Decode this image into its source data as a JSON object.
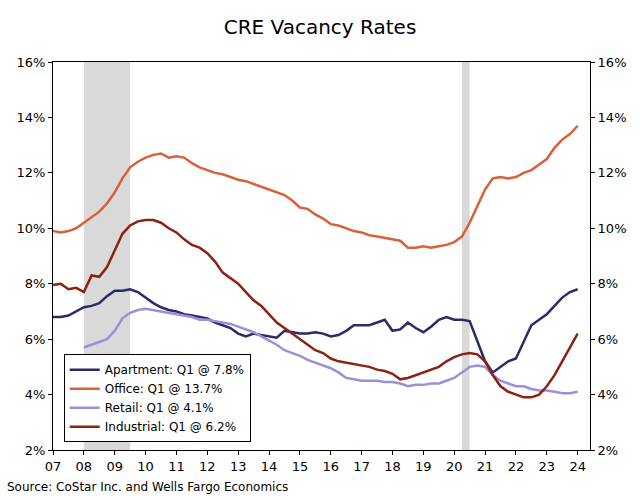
{
  "chart_data": {
    "type": "line",
    "title": "CRE Vacancy Rates",
    "source": "Source: CoStar Inc. and Wells Fargo Economics",
    "x": [
      2007,
      2007.25,
      2007.5,
      2007.75,
      2008,
      2008.25,
      2008.5,
      2008.75,
      2009,
      2009.25,
      2009.5,
      2009.75,
      2010,
      2010.25,
      2010.5,
      2010.75,
      2011,
      2011.25,
      2011.5,
      2011.75,
      2012,
      2012.25,
      2012.5,
      2012.75,
      2013,
      2013.25,
      2013.5,
      2013.75,
      2014,
      2014.25,
      2014.5,
      2014.75,
      2015,
      2015.25,
      2015.5,
      2015.75,
      2016,
      2016.25,
      2016.5,
      2016.75,
      2017,
      2017.25,
      2017.5,
      2017.75,
      2018,
      2018.25,
      2018.5,
      2018.75,
      2019,
      2019.25,
      2019.5,
      2019.75,
      2020,
      2020.25,
      2020.5,
      2020.75,
      2021,
      2021.25,
      2021.5,
      2021.75,
      2022,
      2022.25,
      2022.5,
      2022.75,
      2023,
      2023.25,
      2023.5,
      2023.75,
      2024
    ],
    "series": [
      {
        "name": "Apartment: Q1 @ 7.8%",
        "color": "#2b2a6b",
        "values": [
          6.8,
          6.8,
          6.85,
          7.0,
          7.15,
          7.2,
          7.3,
          7.55,
          7.75,
          7.75,
          7.8,
          7.7,
          7.5,
          7.3,
          7.15,
          7.05,
          7.0,
          6.9,
          6.85,
          6.8,
          6.75,
          6.6,
          6.5,
          6.4,
          6.2,
          6.1,
          6.2,
          6.15,
          6.1,
          6.05,
          6.3,
          6.25,
          6.2,
          6.2,
          6.25,
          6.2,
          6.1,
          6.15,
          6.3,
          6.5,
          6.5,
          6.5,
          6.6,
          6.7,
          6.3,
          6.35,
          6.6,
          6.4,
          6.25,
          6.45,
          6.7,
          6.8,
          6.7,
          6.7,
          6.65,
          5.9,
          5.2,
          4.8,
          5.0,
          5.2,
          5.3,
          5.9,
          6.5,
          6.7,
          6.9,
          7.2,
          7.5,
          7.7,
          7.8
        ]
      },
      {
        "name": "Office: Q1 @ 13.7%",
        "color": "#d9603b",
        "values": [
          9.9,
          9.85,
          9.9,
          10.0,
          10.2,
          10.4,
          10.6,
          10.9,
          11.3,
          11.8,
          12.2,
          12.4,
          12.55,
          12.65,
          12.7,
          12.55,
          12.6,
          12.55,
          12.35,
          12.2,
          12.1,
          12.0,
          11.95,
          11.85,
          11.75,
          11.7,
          11.6,
          11.5,
          11.4,
          11.3,
          11.2,
          11.0,
          10.75,
          10.7,
          10.5,
          10.35,
          10.15,
          10.1,
          10.0,
          9.9,
          9.85,
          9.75,
          9.7,
          9.65,
          9.6,
          9.55,
          9.3,
          9.3,
          9.35,
          9.3,
          9.35,
          9.4,
          9.5,
          9.7,
          10.2,
          10.8,
          11.4,
          11.8,
          11.85,
          11.8,
          11.85,
          12.0,
          12.1,
          12.3,
          12.5,
          12.9,
          13.2,
          13.4,
          13.7
        ]
      },
      {
        "name": "Retail: Q1 @ 4.1%",
        "color": "#9b8fd9",
        "values": [
          null,
          null,
          null,
          null,
          5.7,
          5.8,
          5.9,
          6.0,
          6.3,
          6.75,
          6.95,
          7.05,
          7.1,
          7.05,
          7.0,
          6.95,
          6.9,
          6.85,
          6.8,
          6.7,
          6.7,
          6.65,
          6.6,
          6.55,
          6.45,
          6.35,
          6.25,
          6.1,
          5.95,
          5.8,
          5.6,
          5.5,
          5.4,
          5.25,
          5.15,
          5.05,
          4.95,
          4.8,
          4.6,
          4.55,
          4.5,
          4.5,
          4.5,
          4.45,
          4.45,
          4.4,
          4.3,
          4.35,
          4.35,
          4.4,
          4.4,
          4.5,
          4.6,
          4.8,
          5.0,
          5.05,
          5.0,
          4.7,
          4.5,
          4.4,
          4.3,
          4.3,
          4.2,
          4.15,
          4.15,
          4.1,
          4.05,
          4.05,
          4.1
        ]
      },
      {
        "name": "Industrial: Q1 @ 6.2%",
        "color": "#8b2212",
        "values": [
          7.95,
          8.0,
          7.8,
          7.85,
          7.7,
          8.3,
          8.25,
          8.6,
          9.2,
          9.8,
          10.1,
          10.25,
          10.3,
          10.3,
          10.2,
          10.0,
          9.85,
          9.6,
          9.4,
          9.3,
          9.1,
          8.8,
          8.4,
          8.2,
          8.0,
          7.7,
          7.4,
          7.2,
          6.9,
          6.6,
          6.4,
          6.2,
          6.0,
          5.8,
          5.6,
          5.5,
          5.3,
          5.2,
          5.15,
          5.1,
          5.05,
          5.0,
          4.9,
          4.85,
          4.75,
          4.55,
          4.6,
          4.7,
          4.8,
          4.9,
          5.0,
          5.2,
          5.35,
          5.45,
          5.5,
          5.45,
          5.2,
          4.7,
          4.3,
          4.1,
          4.0,
          3.9,
          3.9,
          4.0,
          4.3,
          4.7,
          5.2,
          5.7,
          6.2
        ]
      }
    ],
    "recessions": [
      {
        "start": 2008.0,
        "end": 2009.5
      },
      {
        "start": 2020.25,
        "end": 2020.5
      }
    ],
    "xlim": [
      2007,
      2024.4
    ],
    "xticks": [
      {
        "value": 2007,
        "label": "07"
      },
      {
        "value": 2008,
        "label": "08"
      },
      {
        "value": 2009,
        "label": "09"
      },
      {
        "value": 2010,
        "label": "10"
      },
      {
        "value": 2011,
        "label": "11"
      },
      {
        "value": 2012,
        "label": "12"
      },
      {
        "value": 2013,
        "label": "13"
      },
      {
        "value": 2014,
        "label": "14"
      },
      {
        "value": 2015,
        "label": "15"
      },
      {
        "value": 2016,
        "label": "16"
      },
      {
        "value": 2017,
        "label": "17"
      },
      {
        "value": 2018,
        "label": "18"
      },
      {
        "value": 2019,
        "label": "19"
      },
      {
        "value": 2020,
        "label": "20"
      },
      {
        "value": 2021,
        "label": "21"
      },
      {
        "value": 2022,
        "label": "22"
      },
      {
        "value": 2023,
        "label": "23"
      },
      {
        "value": 2024,
        "label": "24"
      }
    ],
    "ylim": [
      2,
      16
    ],
    "yticks": [
      {
        "value": 2,
        "label": "2%"
      },
      {
        "value": 4,
        "label": "4%"
      },
      {
        "value": 6,
        "label": "6%"
      },
      {
        "value": 8,
        "label": "8%"
      },
      {
        "value": 10,
        "label": "10%"
      },
      {
        "value": 12,
        "label": "12%"
      },
      {
        "value": 14,
        "label": "14%"
      },
      {
        "value": 16,
        "label": "16%"
      }
    ],
    "y2lim": [
      2,
      16
    ],
    "y2ticks": [
      {
        "value": 2,
        "label": "2%"
      },
      {
        "value": 4,
        "label": "4%"
      },
      {
        "value": 6,
        "label": "6%"
      },
      {
        "value": 8,
        "label": "8%"
      },
      {
        "value": 10,
        "label": "10%"
      },
      {
        "value": 12,
        "label": "12%"
      },
      {
        "value": 14,
        "label": "14%"
      },
      {
        "value": 16,
        "label": "16%"
      }
    ],
    "grid": false,
    "legend": "lower left"
  }
}
